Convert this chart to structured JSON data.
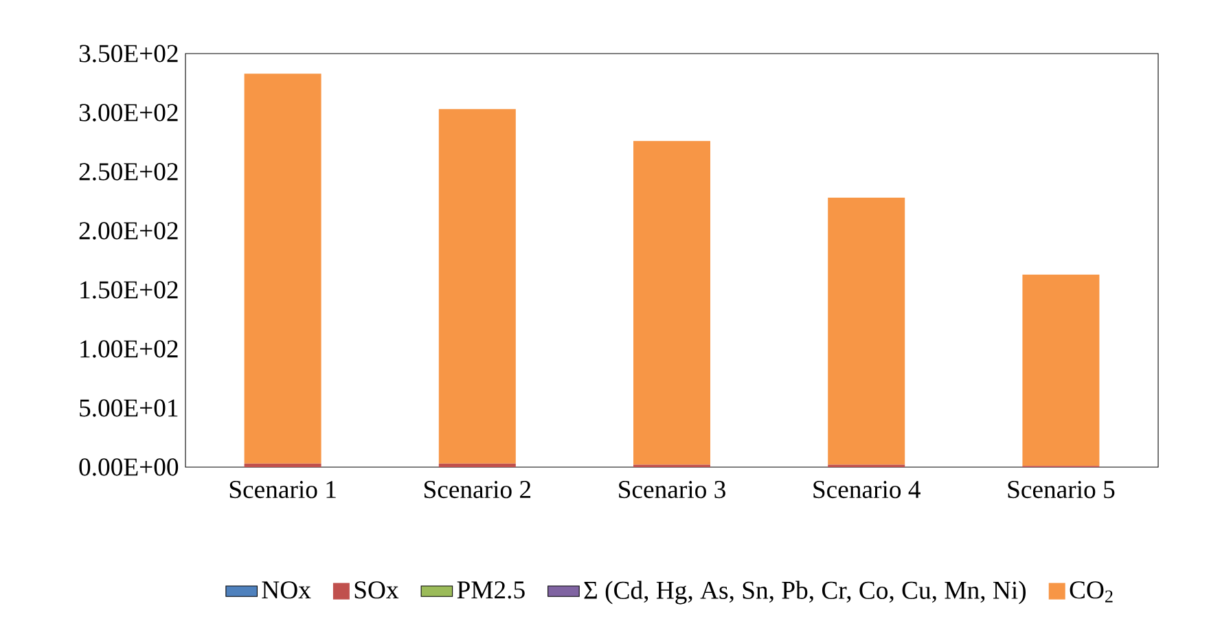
{
  "chart_data": {
    "type": "bar",
    "stacked": true,
    "categories": [
      "Scenario 1",
      "Scenario 2",
      "Scenario 3",
      "Scenario 4",
      "Scenario 5"
    ],
    "series": [
      {
        "name": "NOx",
        "color": "#4f81bd",
        "values": [
          null,
          null,
          null,
          null,
          null
        ]
      },
      {
        "name": "SOx",
        "color": "#c0504d",
        "values": [
          3,
          3,
          2,
          2,
          1
        ]
      },
      {
        "name": "PM2.5",
        "color": "#9bbb59",
        "values": [
          null,
          null,
          null,
          null,
          null
        ]
      },
      {
        "name": "Σ (Cd, Hg, As, Sn, Pb, Cr, Co, Cu, Mn, Ni)",
        "color": "#8064a2",
        "values": [
          null,
          null,
          null,
          null,
          null
        ]
      },
      {
        "name": "CO$_{2}$",
        "color": "#f79646",
        "values": [
          330,
          300,
          274,
          226,
          162
        ]
      }
    ],
    "ylim": [
      0,
      350
    ],
    "yticks": [
      {
        "value": 0,
        "label": "0.00E+00"
      },
      {
        "value": 50,
        "label": "5.00E+01"
      },
      {
        "value": 100,
        "label": "1.00E+02"
      },
      {
        "value": 150,
        "label": "1.50E+02"
      },
      {
        "value": 200,
        "label": "2.00E+02"
      },
      {
        "value": 250,
        "label": "2.50E+02"
      },
      {
        "value": 300,
        "label": "3.00E+02"
      },
      {
        "value": 350,
        "label": "3.50E+02"
      }
    ],
    "grid": false,
    "legend": "bottom"
  }
}
